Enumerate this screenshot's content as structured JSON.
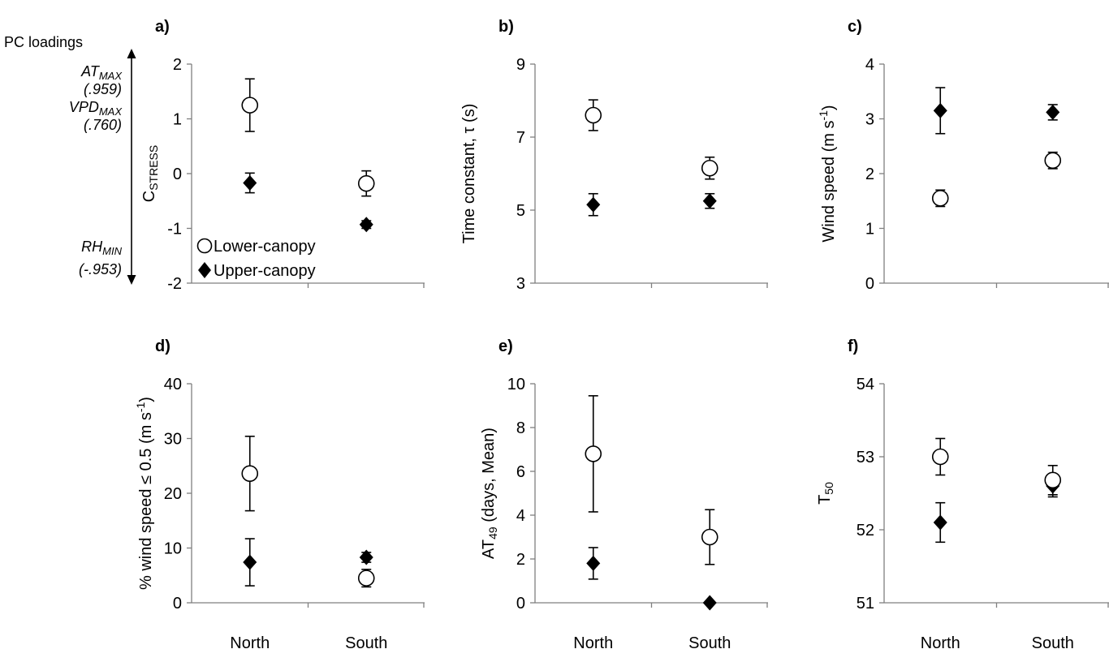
{
  "pc_annotation": {
    "title": "PC loadings",
    "top_label_main": "AT",
    "top_label_sub": "MAX",
    "top_value": "(.959)",
    "mid_label_main": "VPD",
    "mid_label_sub": "MAX",
    "mid_value": "(.760)",
    "bottom_label_main": "RH",
    "bottom_label_sub": "MIN",
    "bottom_value": "(-.953)"
  },
  "legend": {
    "lower": "Lower-canopy",
    "upper": "Upper-canopy"
  },
  "chart_data": [
    {
      "id": "a",
      "type": "scatter",
      "panel_label": "a)",
      "ylabel": {
        "main": "C",
        "sub": "STRESS"
      },
      "categories": [
        "North",
        "South"
      ],
      "show_category_labels": false,
      "ylim": [
        -2,
        2
      ],
      "yticks": [
        -2,
        -1,
        0,
        1,
        2
      ],
      "series": [
        {
          "name": "Lower-canopy",
          "marker": "circle",
          "values": [
            1.25,
            -0.18
          ],
          "errors": [
            0.48,
            0.23
          ]
        },
        {
          "name": "Upper-canopy",
          "marker": "diamond",
          "values": [
            -0.17,
            -0.93
          ],
          "errors": [
            0.18,
            0.07
          ]
        }
      ]
    },
    {
      "id": "b",
      "type": "scatter",
      "panel_label": "b)",
      "ylabel": {
        "main": "Time constant, τ (s)"
      },
      "categories": [
        "North",
        "South"
      ],
      "show_category_labels": false,
      "ylim": [
        3,
        9
      ],
      "yticks": [
        3,
        5,
        7,
        9
      ],
      "series": [
        {
          "name": "Lower-canopy",
          "marker": "circle",
          "values": [
            7.6,
            6.15
          ],
          "errors": [
            0.42,
            0.3
          ]
        },
        {
          "name": "Upper-canopy",
          "marker": "diamond",
          "values": [
            5.15,
            5.25
          ],
          "errors": [
            0.3,
            0.2
          ]
        }
      ]
    },
    {
      "id": "c",
      "type": "scatter",
      "panel_label": "c)",
      "ylabel": {
        "main": "Wind speed (m s",
        "sup": "-1",
        "tail": ")"
      },
      "categories": [
        "North",
        "South"
      ],
      "show_category_labels": false,
      "ylim": [
        0,
        4
      ],
      "yticks": [
        0,
        1,
        2,
        3,
        4
      ],
      "series": [
        {
          "name": "Lower-canopy",
          "marker": "circle",
          "values": [
            1.55,
            2.24
          ],
          "errors": [
            0.15,
            0.15
          ]
        },
        {
          "name": "Upper-canopy",
          "marker": "diamond",
          "values": [
            3.15,
            3.12
          ],
          "errors": [
            0.42,
            0.14
          ]
        }
      ]
    },
    {
      "id": "d",
      "type": "scatter",
      "panel_label": "d)",
      "ylabel": {
        "main": "% wind speed ≤ 0.5 (m s",
        "sup": "-1",
        "tail": ")"
      },
      "categories": [
        "North",
        "South"
      ],
      "show_category_labels": true,
      "ylim": [
        0,
        40
      ],
      "yticks": [
        0,
        10,
        20,
        30,
        40
      ],
      "series": [
        {
          "name": "Lower-canopy",
          "marker": "circle",
          "values": [
            23.6,
            4.5
          ],
          "errors": [
            6.8,
            1.6
          ]
        },
        {
          "name": "Upper-canopy",
          "marker": "diamond",
          "values": [
            7.4,
            8.3
          ],
          "errors": [
            4.3,
            0.9
          ]
        }
      ]
    },
    {
      "id": "e",
      "type": "scatter",
      "panel_label": "e)",
      "ylabel": {
        "main": "AT",
        "sub": "49",
        "tail": " (days, Mean)"
      },
      "categories": [
        "North",
        "South"
      ],
      "show_category_labels": true,
      "ylim": [
        0,
        10
      ],
      "yticks": [
        0,
        2,
        4,
        6,
        8,
        10
      ],
      "series": [
        {
          "name": "Lower-canopy",
          "marker": "circle",
          "values": [
            6.8,
            3.0
          ],
          "errors": [
            2.65,
            1.25
          ]
        },
        {
          "name": "Upper-canopy",
          "marker": "diamond",
          "values": [
            1.8,
            0.0
          ],
          "errors": [
            0.72,
            0
          ]
        }
      ]
    },
    {
      "id": "f",
      "type": "scatter",
      "panel_label": "f)",
      "ylabel": {
        "main": "T",
        "sub": "50"
      },
      "categories": [
        "North",
        "South"
      ],
      "show_category_labels": true,
      "ylim": [
        51,
        54
      ],
      "yticks": [
        51,
        52,
        53,
        54
      ],
      "series": [
        {
          "name": "Lower-canopy",
          "marker": "circle",
          "values": [
            53.0,
            52.68
          ],
          "errors": [
            0.25,
            0.2
          ]
        },
        {
          "name": "Upper-canopy",
          "marker": "diamond",
          "values": [
            52.1,
            52.6
          ],
          "errors": [
            0.27,
            0.15
          ]
        }
      ]
    }
  ]
}
